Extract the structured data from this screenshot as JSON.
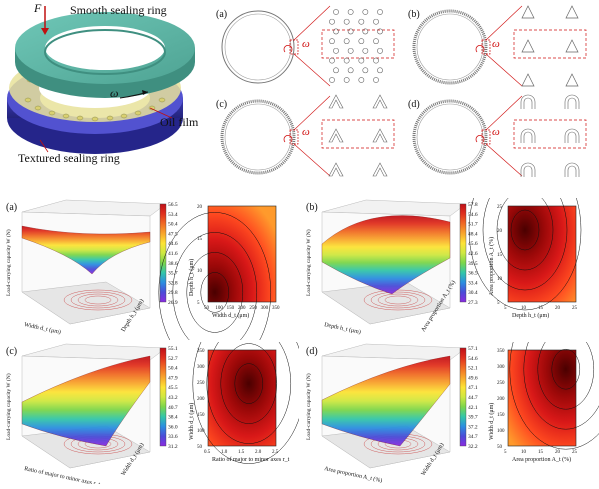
{
  "seal": {
    "force": "F",
    "smooth_ring": "Smooth sealing ring",
    "omega": "ω",
    "oil_film": "Oil film",
    "textured_ring": "Textured sealing ring"
  },
  "texture_panels": [
    {
      "label": "(a)",
      "omega": "ω",
      "shape": "circle"
    },
    {
      "label": "(b)",
      "omega": "ω",
      "shape": "triangle"
    },
    {
      "label": "(c)",
      "omega": "ω",
      "shape": "chevron"
    },
    {
      "label": "(d)",
      "omega": "ω",
      "shape": "arch"
    }
  ],
  "plots": [
    {
      "label": "(a)",
      "z_axis": "Load-carrying capacity W (N)",
      "x_axis": "Width d_t (μm)",
      "y_axis": "Depth h_t (μm)",
      "colorbar": [
        "56.5",
        "53.4",
        "50.4",
        "47.5",
        "44.6",
        "41.6",
        "38.6",
        "35.7",
        "32.8",
        "29.8",
        "26.9"
      ],
      "contour": {
        "type": "heatmap",
        "xlabel": "Width d_t (μm)",
        "ylabel": "Depth h_t (μm)",
        "xticks": [
          "50",
          "100",
          "150",
          "200",
          "250",
          "300",
          "350"
        ],
        "yticks": [
          "5",
          "10",
          "15",
          "20"
        ]
      }
    },
    {
      "label": "(b)",
      "z_axis": "Load-carrying capacity W (N)",
      "x_axis": "Depth h_t (μm)",
      "y_axis": "Area proportion A_t (%)",
      "colorbar": [
        "57.8",
        "54.6",
        "51.7",
        "48.4",
        "45.6",
        "42.6",
        "39.5",
        "36.5",
        "33.4",
        "30.4",
        "27.3"
      ],
      "contour": {
        "type": "heatmap",
        "xlabel": "Depth h_t (μm)",
        "ylabel": "Area proportion A_t (%)",
        "xticks": [
          "5",
          "10",
          "15",
          "20",
          "25"
        ],
        "yticks": [
          "5",
          "10",
          "15",
          "20",
          "25"
        ]
      }
    },
    {
      "label": "(c)",
      "z_axis": "Load-carrying capacity W (N)",
      "x_axis": "Ratio of major to minor axes r_t",
      "y_axis": "Width d_t (μm)",
      "colorbar": [
        "55.1",
        "52.7",
        "50.4",
        "47.9",
        "45.5",
        "43.2",
        "40.7",
        "38.4",
        "36.0",
        "33.6",
        "31.2"
      ],
      "contour": {
        "type": "heatmap",
        "xlabel": "Ratio of major to minor axes r_t",
        "ylabel": "Width d_t (μm)",
        "xticks": [
          "0.5",
          "1.0",
          "1.5",
          "2.0",
          "2.5"
        ],
        "yticks": [
          "50",
          "100",
          "150",
          "200",
          "250",
          "300",
          "350"
        ]
      }
    },
    {
      "label": "(d)",
      "z_axis": "Load-carrying capacity W (N)",
      "x_axis": "Area proportion A_t (%)",
      "y_axis": "Width d_t (μm)",
      "colorbar": [
        "57.1",
        "54.6",
        "52.1",
        "49.6",
        "47.1",
        "44.7",
        "42.1",
        "39.7",
        "37.2",
        "34.7",
        "32.2"
      ],
      "contour": {
        "type": "heatmap",
        "xlabel": "Area proportion A_t (%)",
        "ylabel": "Width d_t (μm)",
        "xticks": [
          "5",
          "10",
          "15",
          "20",
          "25"
        ],
        "yticks": [
          "50",
          "100",
          "150",
          "200",
          "250",
          "300",
          "350"
        ]
      }
    }
  ]
}
